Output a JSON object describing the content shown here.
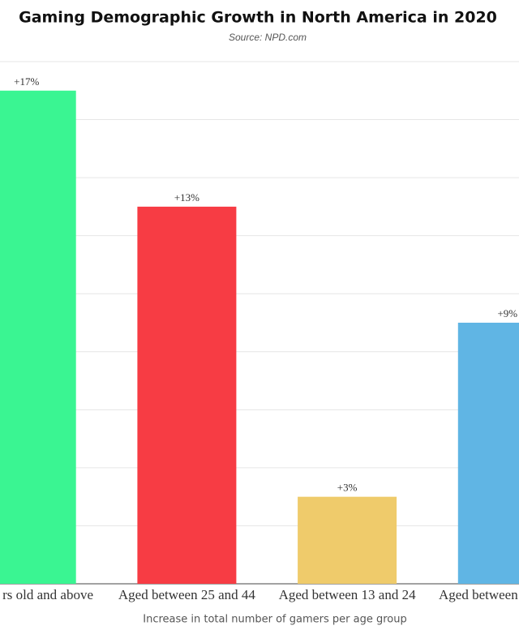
{
  "chart_data": {
    "type": "bar",
    "title": "Gaming Demographic Growth in North America in 2020",
    "subtitle": "Source: NPD.com",
    "x_label": "Increase in total number of gamers per age group",
    "categories": [
      "rs old and above",
      "Aged between 25 and 44",
      "Aged between 13 and 24",
      "Aged between"
    ],
    "values": [
      17,
      13,
      3,
      9
    ],
    "value_labels": [
      "+17%",
      "+13%",
      "+3%",
      "+9%"
    ],
    "colors": [
      "#3af592",
      "#f73c44",
      "#efcb6b",
      "#60b5e4"
    ],
    "ylim": [
      0,
      18
    ],
    "yticks": [
      0,
      2,
      4,
      6,
      8,
      10,
      12,
      14,
      16,
      18
    ],
    "grid": true
  }
}
